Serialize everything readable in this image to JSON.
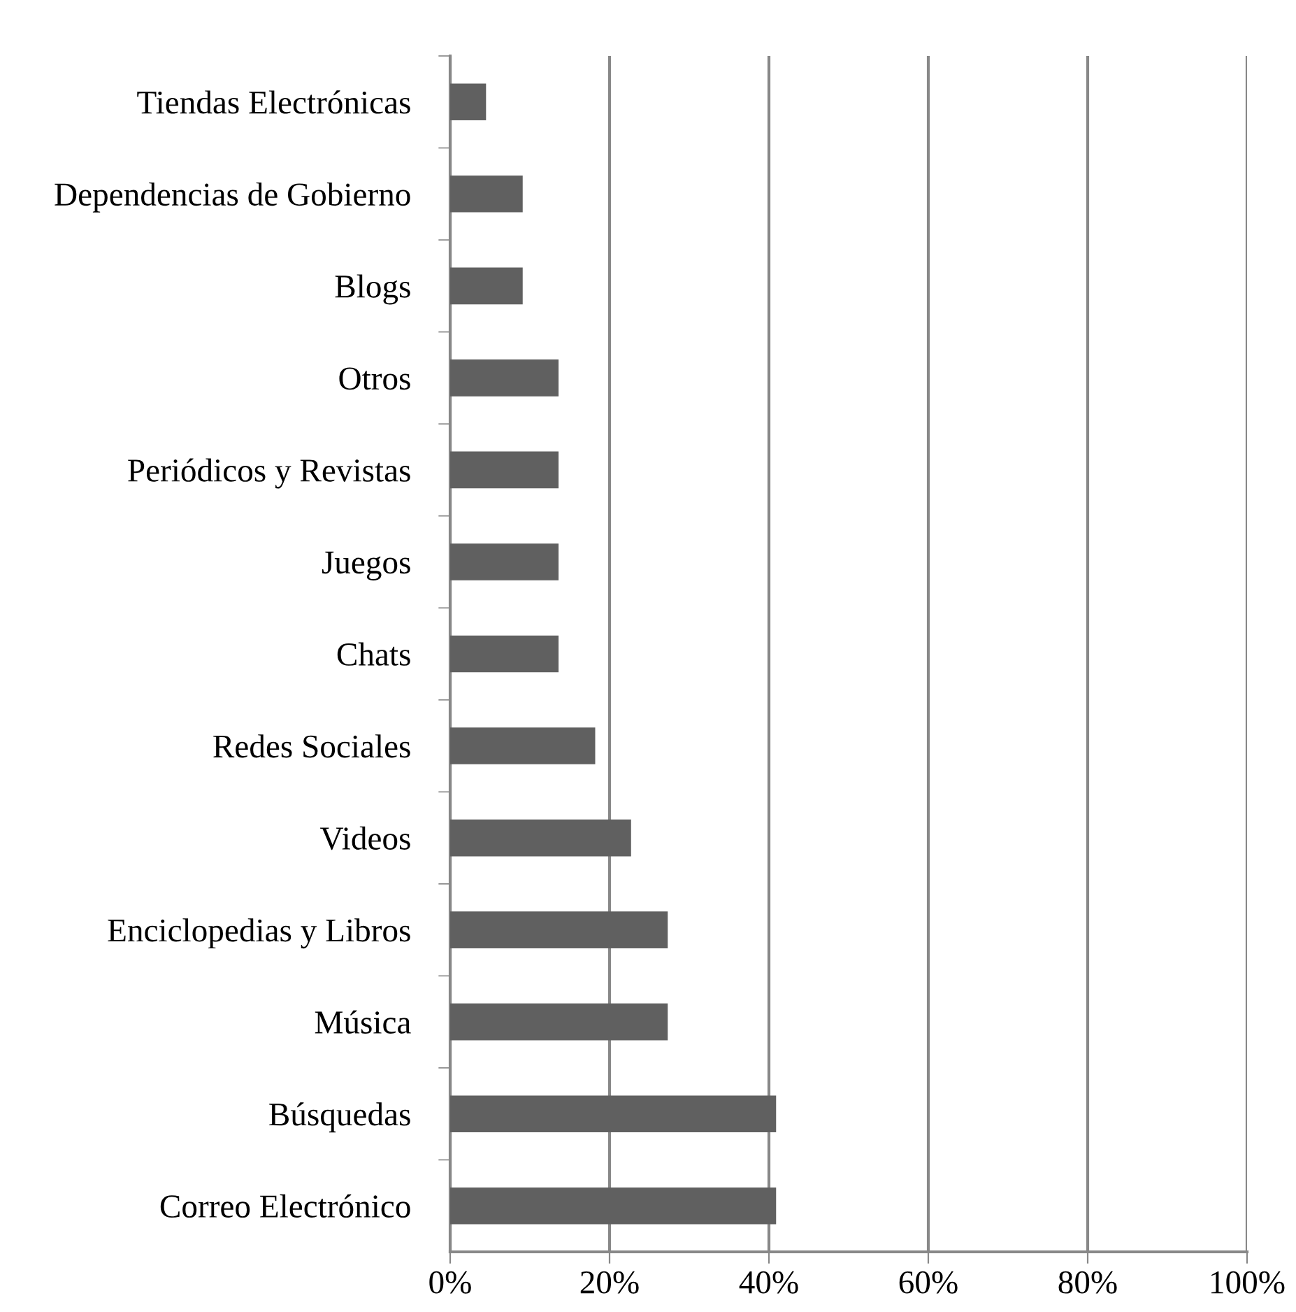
{
  "chart_data": {
    "type": "bar",
    "orientation": "horizontal",
    "categories": [
      "Tiendas Electrónicas",
      "Dependencias de Gobierno",
      "Blogs",
      "Otros",
      "Periódicos y Revistas",
      "Juegos",
      "Chats",
      "Redes Sociales",
      "Videos",
      "Enciclopedias y Libros",
      "Música",
      "Búsquedas",
      "Correo Electrónico"
    ],
    "values": [
      4.5,
      9.1,
      9.1,
      13.6,
      13.6,
      13.6,
      13.6,
      18.2,
      22.7,
      27.3,
      27.3,
      40.9,
      40.9
    ],
    "color": "#606060",
    "xlim": [
      0,
      100
    ],
    "xticks": [
      {
        "value": 0,
        "label": "0%"
      },
      {
        "value": 20,
        "label": "20%"
      },
      {
        "value": 40,
        "label": "40%"
      },
      {
        "value": 60,
        "label": "60%"
      },
      {
        "value": 80,
        "label": "80%"
      },
      {
        "value": 100,
        "label": "100%"
      }
    ],
    "grid": "x",
    "legend": false
  }
}
